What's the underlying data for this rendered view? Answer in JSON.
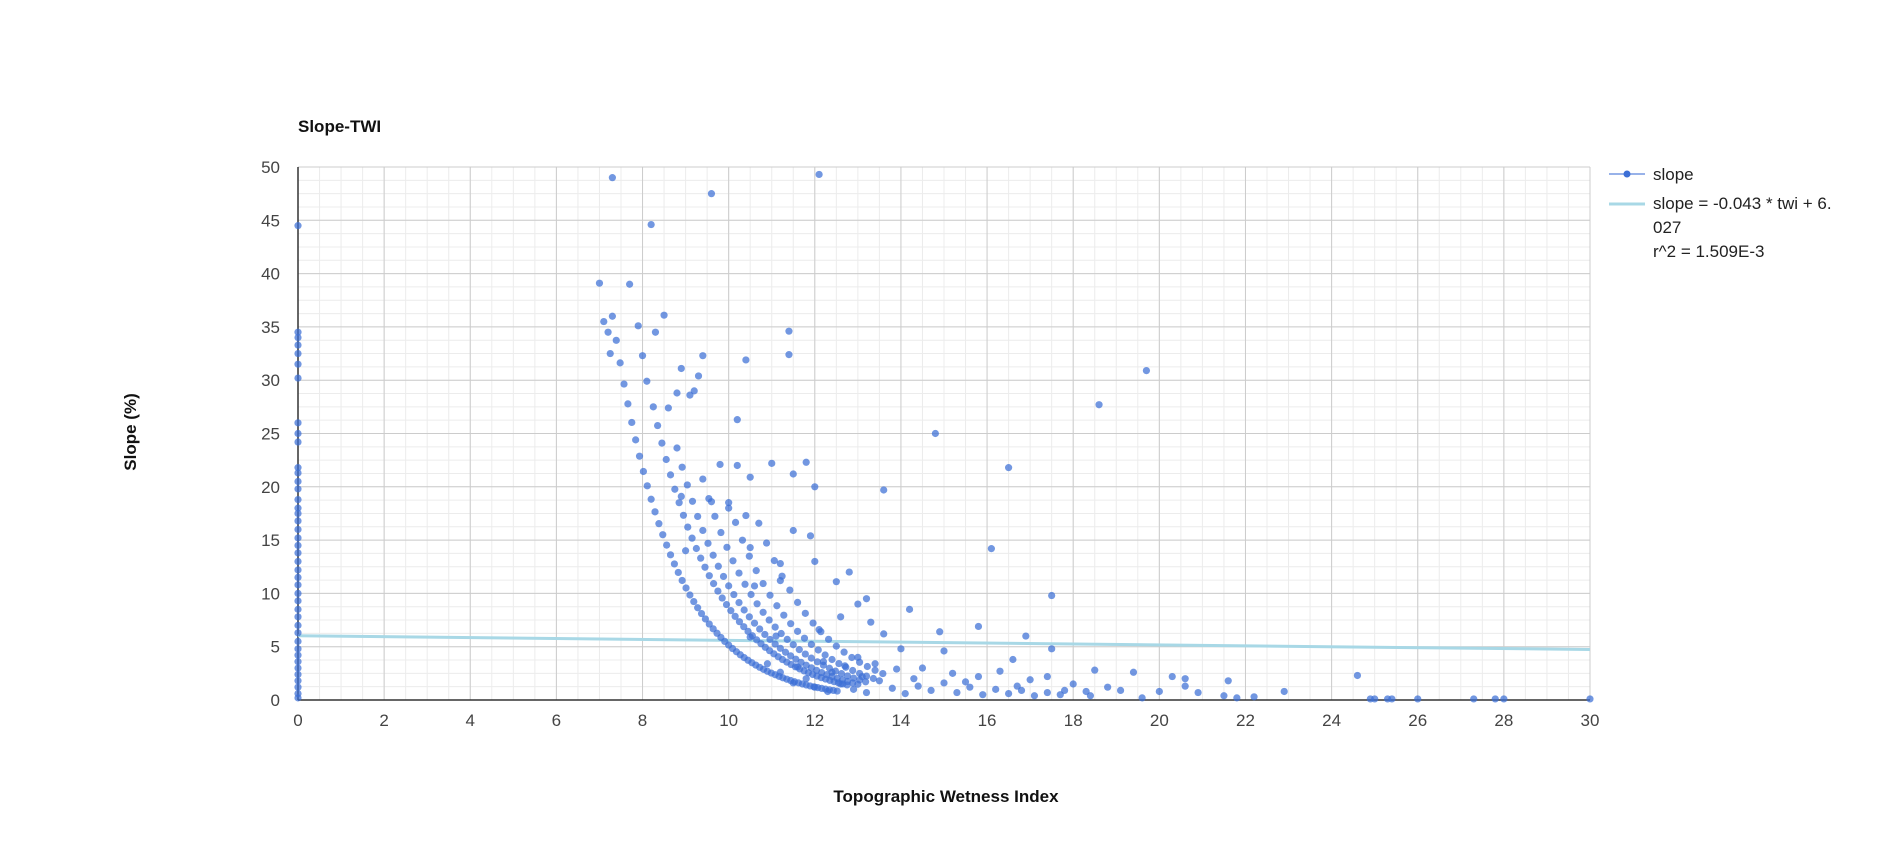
{
  "chart_data": {
    "type": "scatter",
    "title": "Slope-TWI",
    "xlabel": "Topographic Wetness Index",
    "ylabel": "Slope (%)",
    "xlim": [
      0,
      30
    ],
    "ylim": [
      0,
      50
    ],
    "x_ticks": [
      0,
      2,
      4,
      6,
      8,
      10,
      12,
      14,
      16,
      18,
      20,
      22,
      24,
      26,
      28,
      30
    ],
    "y_ticks": [
      0,
      5,
      10,
      15,
      20,
      25,
      30,
      35,
      40,
      45,
      50
    ],
    "grid": true,
    "minor_grid": true,
    "legend_position": "right",
    "colors": {
      "points": "#3c6fd6",
      "trendline": "#a8d8e6",
      "grid_major": "#cccccc",
      "grid_minor": "#ececec",
      "axis": "#333333"
    },
    "series": [
      {
        "name": "slope",
        "marker": "circle",
        "points": [
          [
            0,
            44.5
          ],
          [
            0,
            34.5
          ],
          [
            0,
            34
          ],
          [
            0,
            33.3
          ],
          [
            0,
            32.5
          ],
          [
            0,
            31.5
          ],
          [
            0,
            30.2
          ],
          [
            0,
            26
          ],
          [
            0,
            25
          ],
          [
            0,
            24.2
          ],
          [
            0,
            21.8
          ],
          [
            0,
            21.3
          ],
          [
            0,
            20.5
          ],
          [
            0,
            19.8
          ],
          [
            0,
            18.8
          ],
          [
            0,
            18
          ],
          [
            0,
            17.5
          ],
          [
            0,
            16.8
          ],
          [
            0,
            16
          ],
          [
            0,
            15.2
          ],
          [
            0,
            14.5
          ],
          [
            0,
            13.8
          ],
          [
            0,
            13
          ],
          [
            0,
            12.2
          ],
          [
            0,
            11.5
          ],
          [
            0,
            10.8
          ],
          [
            0,
            10
          ],
          [
            0,
            9.3
          ],
          [
            0,
            8.5
          ],
          [
            0,
            7.8
          ],
          [
            0,
            7
          ],
          [
            0,
            6.3
          ],
          [
            0,
            5.5
          ],
          [
            0,
            4.8
          ],
          [
            0,
            4.2
          ],
          [
            0,
            3.6
          ],
          [
            0,
            3
          ],
          [
            0,
            2.4
          ],
          [
            0,
            1.8
          ],
          [
            0,
            1.2
          ],
          [
            0,
            0.6
          ],
          [
            0,
            0.2
          ],
          [
            7.3,
            49
          ],
          [
            12.1,
            49.3
          ],
          [
            9.6,
            47.5
          ],
          [
            8.2,
            44.6
          ],
          [
            7.0,
            39.1
          ],
          [
            7.7,
            39.0
          ],
          [
            8.5,
            36.1
          ],
          [
            7.1,
            35.5
          ],
          [
            7.2,
            34.5
          ],
          [
            8.3,
            34.5
          ],
          [
            7.9,
            35.1
          ],
          [
            11.4,
            34.6
          ],
          [
            7.25,
            32.5
          ],
          [
            8.0,
            32.3
          ],
          [
            9.4,
            32.3
          ],
          [
            11.4,
            32.4
          ],
          [
            10.4,
            31.9
          ],
          [
            8.9,
            31.1
          ],
          [
            9.3,
            30.4
          ],
          [
            19.7,
            30.9
          ],
          [
            18.6,
            27.7
          ],
          [
            8.1,
            29.9
          ],
          [
            8.8,
            28.8
          ],
          [
            9.1,
            28.6
          ],
          [
            9.2,
            29.0
          ],
          [
            8.6,
            27.4
          ],
          [
            10.2,
            26.3
          ],
          [
            14.8,
            25.0
          ],
          [
            16.5,
            21.8
          ],
          [
            13.6,
            19.7
          ],
          [
            11.8,
            22.3
          ],
          [
            11.0,
            22.2
          ],
          [
            10.2,
            22.0
          ],
          [
            9.8,
            22.1
          ],
          [
            11.5,
            21.2
          ],
          [
            12.0,
            20.0
          ],
          [
            10.5,
            20.9
          ],
          [
            8.9,
            19.1
          ],
          [
            9.6,
            18.6
          ],
          [
            10.0,
            18.0
          ],
          [
            10.4,
            17.3
          ],
          [
            11.5,
            15.9
          ],
          [
            11.9,
            15.4
          ],
          [
            10.5,
            14.3
          ],
          [
            9.0,
            14.0
          ],
          [
            16.1,
            14.2
          ],
          [
            11.2,
            12.8
          ],
          [
            12.0,
            13.0
          ],
          [
            12.5,
            11.1
          ],
          [
            12.8,
            12.0
          ],
          [
            11.2,
            11.2
          ],
          [
            10.6,
            10.7
          ],
          [
            17.5,
            9.8
          ],
          [
            13.2,
            9.5
          ],
          [
            13.0,
            9.0
          ],
          [
            14.2,
            8.5
          ],
          [
            12.6,
            7.8
          ],
          [
            13.3,
            7.3
          ],
          [
            16.9,
            6.0
          ],
          [
            15.8,
            6.9
          ],
          [
            14.9,
            6.4
          ],
          [
            13.6,
            6.2
          ],
          [
            12.1,
            6.6
          ],
          [
            11.1,
            6.0
          ],
          [
            10.5,
            5.9
          ],
          [
            17.5,
            4.8
          ],
          [
            15.0,
            4.6
          ],
          [
            14.0,
            4.8
          ],
          [
            16.6,
            3.8
          ],
          [
            18.5,
            2.8
          ],
          [
            19.4,
            2.6
          ],
          [
            20.3,
            2.2
          ],
          [
            20.6,
            2.0
          ],
          [
            21.6,
            1.8
          ],
          [
            24.6,
            2.3
          ],
          [
            22.9,
            0.8
          ],
          [
            20.0,
            0.8
          ],
          [
            21.5,
            0.4
          ],
          [
            22.2,
            0.3
          ],
          [
            21.8,
            0.2
          ],
          [
            19.6,
            0.2
          ],
          [
            18.4,
            0.4
          ],
          [
            17.8,
            0.9
          ],
          [
            16.7,
            1.3
          ],
          [
            15.5,
            1.7
          ],
          [
            14.3,
            2.0
          ],
          [
            13.1,
            2.2
          ],
          [
            12.4,
            2.6
          ],
          [
            11.6,
            3.1
          ],
          [
            24.9,
            0.1
          ],
          [
            25.0,
            0.1
          ],
          [
            25.3,
            0.1
          ],
          [
            25.4,
            0.1
          ],
          [
            26.0,
            0.1
          ],
          [
            27.3,
            0.1
          ],
          [
            27.8,
            0.1
          ],
          [
            28.0,
            0.1
          ],
          [
            30.0,
            0.1
          ],
          [
            12.0,
            1.2
          ],
          [
            12.3,
            0.8
          ],
          [
            12.6,
            1.5
          ],
          [
            12.9,
            1.0
          ],
          [
            13.2,
            0.7
          ],
          [
            13.5,
            1.8
          ],
          [
            13.8,
            1.1
          ],
          [
            14.1,
            0.6
          ],
          [
            14.4,
            1.3
          ],
          [
            14.7,
            0.9
          ],
          [
            15.0,
            1.6
          ],
          [
            15.3,
            0.7
          ],
          [
            15.6,
            1.2
          ],
          [
            15.9,
            0.5
          ],
          [
            16.2,
            1.0
          ],
          [
            16.5,
            0.6
          ],
          [
            16.8,
            0.9
          ],
          [
            17.1,
            0.4
          ],
          [
            17.4,
            0.7
          ],
          [
            17.7,
            0.5
          ],
          [
            18.0,
            1.5
          ],
          [
            18.3,
            0.8
          ],
          [
            18.8,
            1.2
          ],
          [
            19.1,
            0.9
          ],
          [
            20.6,
            1.3
          ],
          [
            20.9,
            0.7
          ],
          [
            11.8,
            2.0
          ],
          [
            11.5,
            1.6
          ],
          [
            11.2,
            2.6
          ],
          [
            10.9,
            3.4
          ],
          [
            12.2,
            3.6
          ],
          [
            12.7,
            3.2
          ],
          [
            13.0,
            4.0
          ],
          [
            13.4,
            3.4
          ],
          [
            13.9,
            2.9
          ],
          [
            14.5,
            3.0
          ],
          [
            15.2,
            2.5
          ],
          [
            15.8,
            2.2
          ],
          [
            16.3,
            2.7
          ],
          [
            17.0,
            1.9
          ],
          [
            17.4,
            2.2
          ]
        ],
        "curves": [
          {
            "k": 1.68,
            "x_start": 7.3,
            "x_end": 12.6,
            "step": 0.09
          },
          {
            "k": 2.02,
            "x_start": 8.25,
            "x_end": 12.8,
            "step": 0.1
          },
          {
            "k": 2.35,
            "x_start": 8.8,
            "x_end": 13.0,
            "step": 0.12
          },
          {
            "k": 2.68,
            "x_start": 9.4,
            "x_end": 13.2,
            "step": 0.14
          },
          {
            "k": 3.0,
            "x_start": 10.0,
            "x_end": 13.4,
            "step": 0.16
          },
          {
            "k": 3.35,
            "x_start": 10.7,
            "x_end": 13.6,
            "step": 0.18
          }
        ]
      },
      {
        "name": "slope = -0.043 * twi + 6.027",
        "type": "trendline",
        "equation": {
          "slope": -0.043,
          "intercept": 6.027
        },
        "r2": "1.509E-3"
      }
    ],
    "legend": [
      {
        "label": "slope"
      },
      {
        "line1": "slope = -0.043 * twi + 6.",
        "line2": "027",
        "line3": "r^2 = 1.509E-3"
      }
    ]
  }
}
